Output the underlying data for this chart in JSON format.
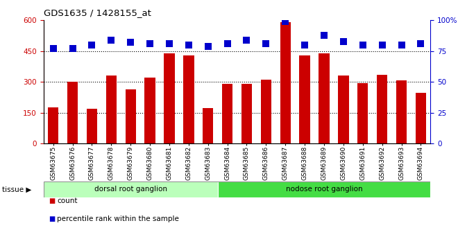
{
  "title": "GDS1635 / 1428155_at",
  "categories": [
    "GSM63675",
    "GSM63676",
    "GSM63677",
    "GSM63678",
    "GSM63679",
    "GSM63680",
    "GSM63681",
    "GSM63682",
    "GSM63683",
    "GSM63684",
    "GSM63685",
    "GSM63686",
    "GSM63687",
    "GSM63688",
    "GSM63689",
    "GSM63690",
    "GSM63691",
    "GSM63692",
    "GSM63693",
    "GSM63694"
  ],
  "bar_values": [
    175,
    300,
    168,
    330,
    262,
    320,
    440,
    430,
    172,
    290,
    290,
    312,
    590,
    430,
    440,
    332,
    295,
    335,
    308,
    248
  ],
  "percentile_values": [
    77,
    77,
    80,
    84,
    82,
    81,
    81,
    80,
    79,
    81,
    84,
    81,
    99,
    80,
    88,
    83,
    80,
    80,
    80,
    81
  ],
  "bar_color": "#cc0000",
  "percentile_color": "#0000cc",
  "ylim_left": [
    0,
    600
  ],
  "ylim_right": [
    0,
    100
  ],
  "yticks_left": [
    0,
    150,
    300,
    450,
    600
  ],
  "yticks_right": [
    0,
    25,
    50,
    75,
    100
  ],
  "grid_values": [
    150,
    300,
    450
  ],
  "tissue_groups": [
    {
      "label": "dorsal root ganglion",
      "start": 0,
      "end": 9,
      "color": "#bbffbb"
    },
    {
      "label": "nodose root ganglion",
      "start": 9,
      "end": 20,
      "color": "#44dd44"
    }
  ],
  "tissue_label": "tissue ▶",
  "legend_items": [
    {
      "label": "count",
      "color": "#cc0000"
    },
    {
      "label": "percentile rank within the sample",
      "color": "#0000cc"
    }
  ],
  "tick_label_color_left": "#cc0000",
  "tick_label_color_right": "#0000cc",
  "percentile_marker_size": 55
}
